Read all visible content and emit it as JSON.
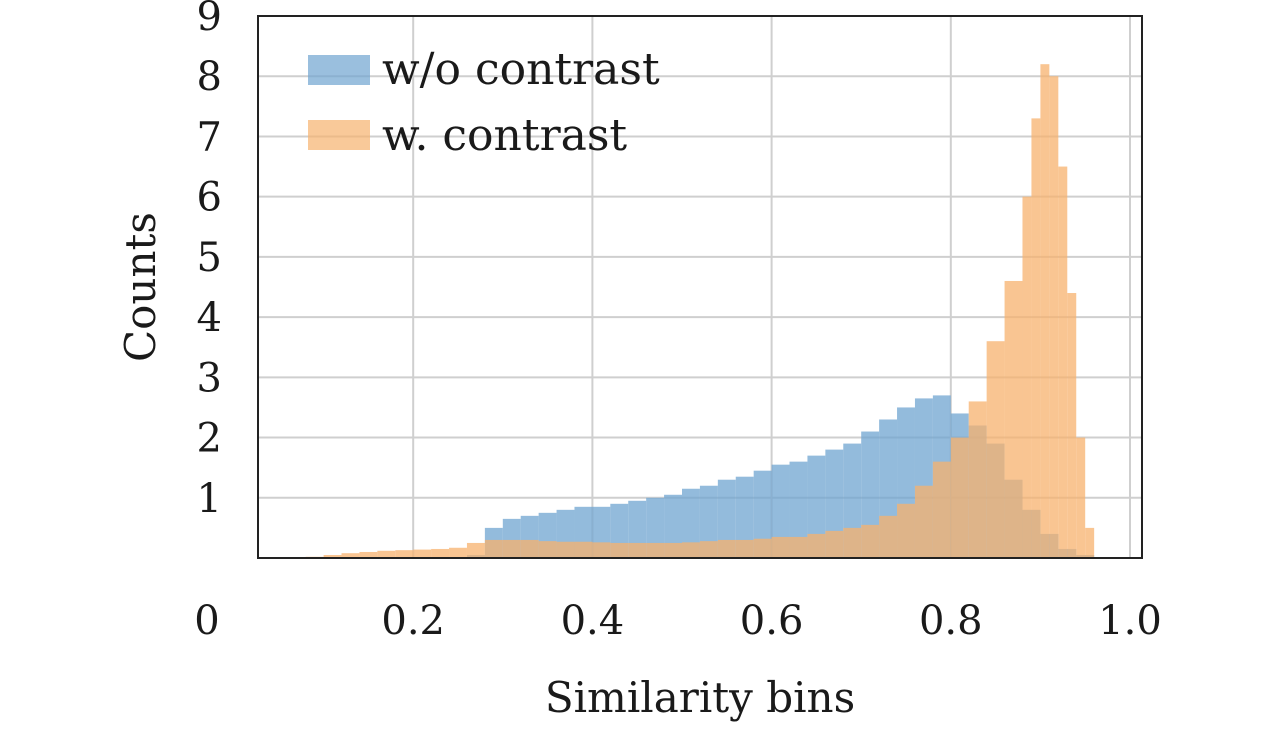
{
  "chart_data": {
    "type": "histogram",
    "xlabel": "Similarity bins",
    "ylabel": "Counts",
    "xlim": [
      0,
      1.0
    ],
    "ylim": [
      0,
      9
    ],
    "x_ticks": [
      "0",
      "0.2",
      "0.4",
      "0.6",
      "0.8",
      "1.0"
    ],
    "x_tick_values": [
      0,
      0.2,
      0.4,
      0.6,
      0.8,
      1.0
    ],
    "y_ticks": [
      "1",
      "2",
      "3",
      "4",
      "5",
      "6",
      "7",
      "8",
      "9"
    ],
    "y_tick_values": [
      1,
      2,
      3,
      4,
      5,
      6,
      7,
      8,
      9
    ],
    "grid": true,
    "legend_position": "top-left",
    "series": [
      {
        "name": "w/o contrast",
        "color": "#6fa4d0",
        "x": [
          0.26,
          0.28,
          0.3,
          0.32,
          0.34,
          0.36,
          0.38,
          0.4,
          0.42,
          0.44,
          0.46,
          0.48,
          0.5,
          0.52,
          0.54,
          0.56,
          0.58,
          0.6,
          0.62,
          0.64,
          0.66,
          0.68,
          0.7,
          0.72,
          0.74,
          0.76,
          0.78,
          0.8,
          0.82,
          0.84,
          0.86,
          0.88,
          0.9,
          0.92,
          0.94,
          0.96
        ],
        "values": [
          0.05,
          0.5,
          0.65,
          0.7,
          0.75,
          0.8,
          0.85,
          0.85,
          0.9,
          0.95,
          1.0,
          1.05,
          1.15,
          1.2,
          1.3,
          1.35,
          1.45,
          1.55,
          1.6,
          1.7,
          1.8,
          1.9,
          2.1,
          2.3,
          2.5,
          2.65,
          2.7,
          2.4,
          2.2,
          1.9,
          1.3,
          0.8,
          0.4,
          0.15,
          0.05,
          0
        ]
      },
      {
        "name": "w. contrast",
        "color": "#f7b26e",
        "x": [
          0.08,
          0.1,
          0.12,
          0.14,
          0.16,
          0.18,
          0.2,
          0.22,
          0.24,
          0.26,
          0.28,
          0.3,
          0.32,
          0.34,
          0.36,
          0.38,
          0.4,
          0.42,
          0.44,
          0.46,
          0.48,
          0.5,
          0.52,
          0.54,
          0.56,
          0.58,
          0.6,
          0.62,
          0.64,
          0.66,
          0.68,
          0.7,
          0.72,
          0.74,
          0.76,
          0.78,
          0.8,
          0.82,
          0.84,
          0.86,
          0.88,
          0.89,
          0.9,
          0.91,
          0.92,
          0.93,
          0.94,
          0.95,
          0.96
        ],
        "values": [
          0.02,
          0.05,
          0.08,
          0.1,
          0.12,
          0.13,
          0.14,
          0.15,
          0.17,
          0.25,
          0.3,
          0.3,
          0.3,
          0.28,
          0.27,
          0.27,
          0.26,
          0.25,
          0.25,
          0.25,
          0.25,
          0.26,
          0.28,
          0.3,
          0.3,
          0.32,
          0.35,
          0.35,
          0.4,
          0.45,
          0.5,
          0.55,
          0.7,
          0.9,
          1.2,
          1.6,
          2.0,
          2.6,
          3.6,
          4.6,
          6.0,
          7.3,
          8.2,
          8.0,
          6.5,
          4.4,
          2.0,
          0.5,
          0
        ]
      }
    ]
  }
}
